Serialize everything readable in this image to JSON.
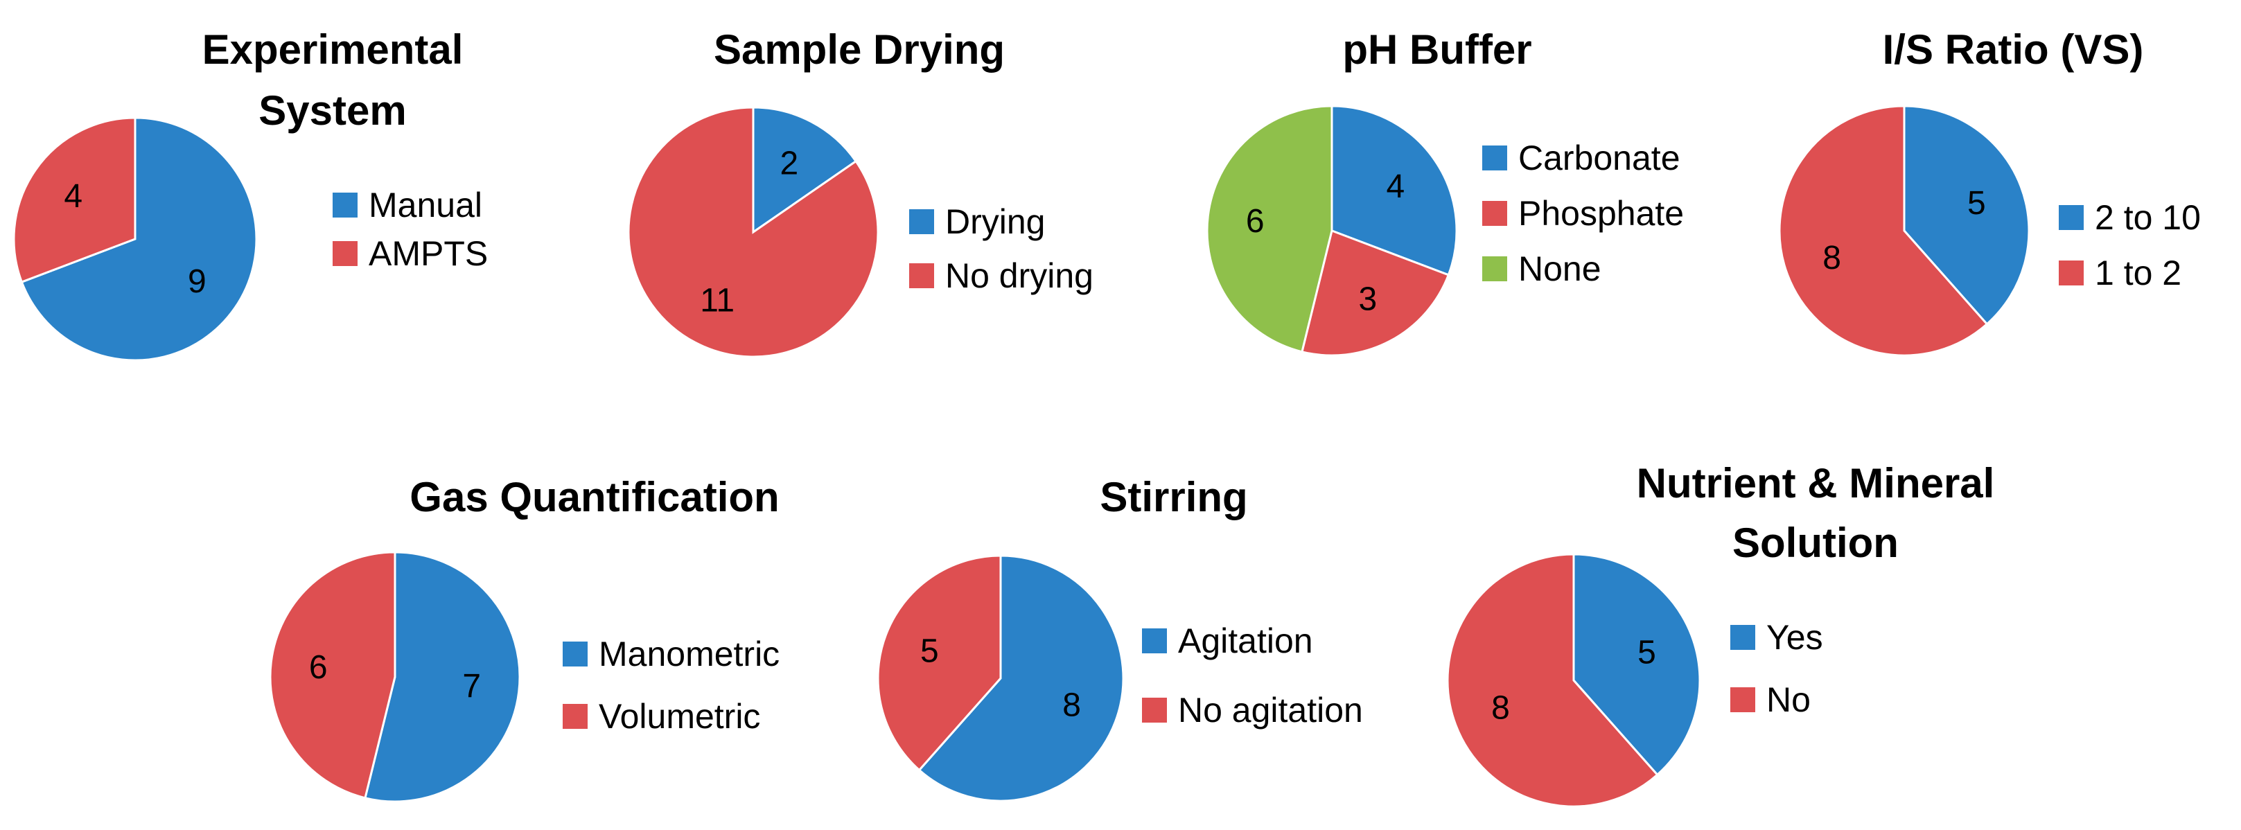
{
  "colors": {
    "blue": "#2A82C8",
    "red": "#DE4F51",
    "green": "#8FC04B",
    "slice_border": "#ffffff"
  },
  "chart_data": [
    {
      "type": "pie",
      "title": [
        "Experimental",
        "System"
      ],
      "slices": [
        {
          "label": "Manual",
          "value": 9,
          "color": "blue"
        },
        {
          "label": "AMPTS",
          "value": 4,
          "color": "red"
        }
      ]
    },
    {
      "type": "pie",
      "title": [
        "Sample Drying"
      ],
      "slices": [
        {
          "label": "Drying",
          "value": 2,
          "color": "blue"
        },
        {
          "label": "No drying",
          "value": 11,
          "color": "red"
        }
      ]
    },
    {
      "type": "pie",
      "title": [
        "pH Buffer"
      ],
      "slices": [
        {
          "label": "Carbonate",
          "value": 4,
          "color": "blue"
        },
        {
          "label": "Phosphate",
          "value": 3,
          "color": "red"
        },
        {
          "label": "None",
          "value": 6,
          "color": "green"
        }
      ]
    },
    {
      "type": "pie",
      "title": [
        "I/S Ratio (VS)"
      ],
      "slices": [
        {
          "label": "2 to 10",
          "value": 5,
          "color": "blue"
        },
        {
          "label": "1 to 2",
          "value": 8,
          "color": "red"
        }
      ]
    },
    {
      "type": "pie",
      "title": [
        "Gas Quantification"
      ],
      "slices": [
        {
          "label": "Manometric",
          "value": 7,
          "color": "blue"
        },
        {
          "label": "Volumetric",
          "value": 6,
          "color": "red"
        }
      ]
    },
    {
      "type": "pie",
      "title": [
        "Stirring"
      ],
      "slices": [
        {
          "label": "Agitation",
          "value": 8,
          "color": "blue"
        },
        {
          "label": "No agitation",
          "value": 5,
          "color": "red"
        }
      ]
    },
    {
      "type": "pie",
      "title": [
        "Nutrient & Mineral",
        "Solution"
      ],
      "slices": [
        {
          "label": "Yes",
          "value": 5,
          "color": "blue"
        },
        {
          "label": "No",
          "value": 8,
          "color": "red"
        }
      ]
    }
  ]
}
